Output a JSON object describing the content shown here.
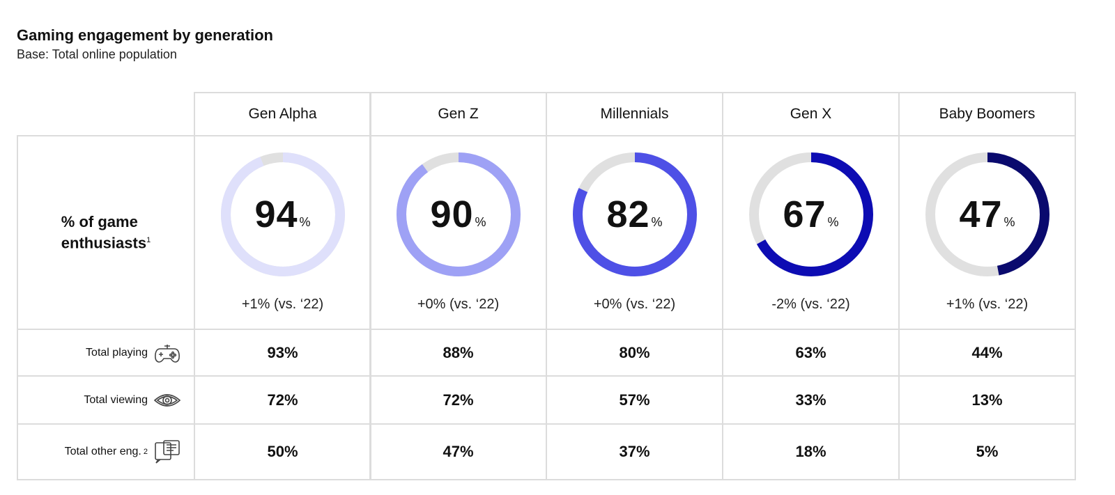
{
  "title": "Gaming engagement by generation",
  "subtitle": "Base: Total online population",
  "enthusiast_label": {
    "line1": "% of game",
    "line2": "enthusiasts",
    "footnote": "1"
  },
  "columns": [
    {
      "name": "Gen Alpha",
      "color": "#dfe0fb",
      "change": "+1% (vs. ‘22)"
    },
    {
      "name": "Gen Z",
      "color": "#9ea1f5",
      "change": "+0% (vs. ‘22)"
    },
    {
      "name": "Millennials",
      "color": "#4e50e6",
      "change": "+0% (vs. ‘22)"
    },
    {
      "name": "Gen X",
      "color": "#0d0cb3",
      "change": "-2% (vs. ‘22)"
    },
    {
      "name": "Baby Boomers",
      "color": "#0a0a6e",
      "change": "+1% (vs. ‘22)"
    }
  ],
  "track_color": "#e0e0e0",
  "metric_rows": [
    {
      "label": "Total playing",
      "footnote": "",
      "icon": "gamepad-icon",
      "values": [
        "93%",
        "88%",
        "80%",
        "63%",
        "44%"
      ]
    },
    {
      "label": "Total viewing",
      "footnote": "",
      "icon": "eye-icon",
      "values": [
        "72%",
        "72%",
        "57%",
        "33%",
        "13%"
      ]
    },
    {
      "label": "Total other eng.",
      "footnote": "2",
      "icon": "chat-bubbles-icon",
      "values": [
        "50%",
        "47%",
        "37%",
        "18%",
        "5%"
      ]
    }
  ],
  "chart_data": {
    "type": "table",
    "title": "Gaming engagement by generation",
    "subtitle": "Base: Total online population",
    "categories": [
      "Gen Alpha",
      "Gen Z",
      "Millennials",
      "Gen X",
      "Baby Boomers"
    ],
    "series": [
      {
        "name": "% of game enthusiasts",
        "values": [
          94,
          90,
          82,
          67,
          47
        ],
        "display": "donut"
      },
      {
        "name": "Total playing",
        "values": [
          93,
          88,
          80,
          63,
          44
        ]
      },
      {
        "name": "Total viewing",
        "values": [
          72,
          72,
          57,
          33,
          13
        ]
      },
      {
        "name": "Total other eng.",
        "values": [
          50,
          47,
          37,
          18,
          5
        ]
      }
    ],
    "enthusiast_values": [
      "94",
      "90",
      "82",
      "67",
      "47"
    ],
    "enthusiast_unit": "%",
    "changes": [
      "+1% (vs. ‘22)",
      "+0% (vs. ‘22)",
      "+0% (vs. ‘22)",
      "-2% (vs. ‘22)",
      "+1% (vs. ‘22)"
    ]
  }
}
